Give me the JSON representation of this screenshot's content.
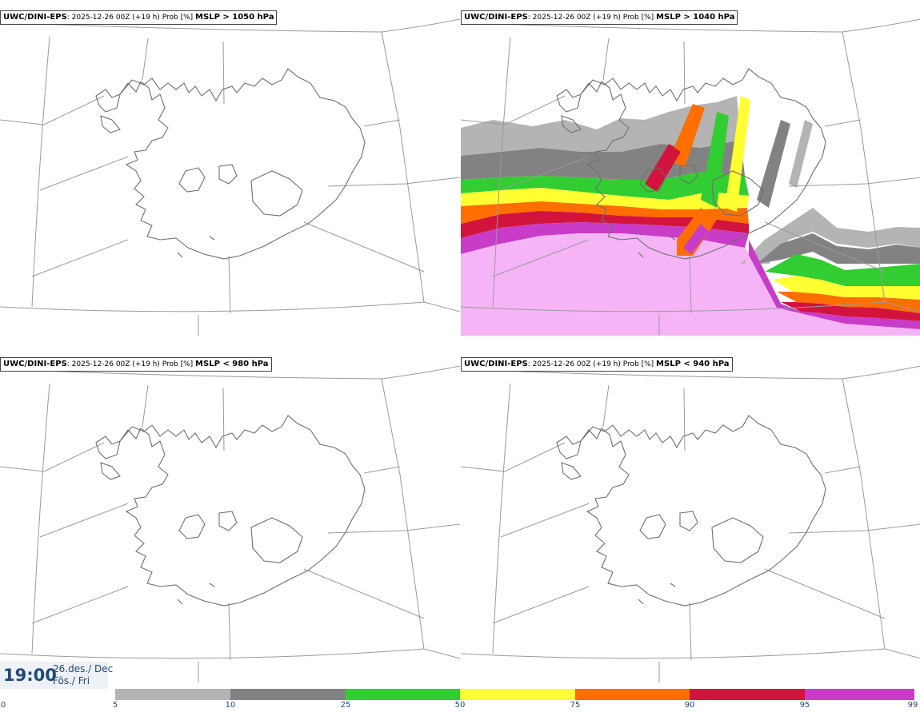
{
  "panels": [
    {
      "model": "UWC/DINI-EPS",
      "run": ": 2025-12-26 00Z (+19 h) Prob [%]",
      "field": "MSLP > 1050 hPa"
    },
    {
      "model": "UWC/DINI-EPS",
      "run": ": 2025-12-26 00Z (+19 h) Prob [%]",
      "field": "MSLP > 1040 hPa"
    },
    {
      "model": "UWC/DINI-EPS",
      "run": ": 2025-12-26 00Z (+19 h) Prob [%]",
      "field": "MSLP < 980 hPa"
    },
    {
      "model": "UWC/DINI-EPS",
      "run": ": 2025-12-26 00Z (+19 h) Prob [%]",
      "field": "MSLP < 940 hPa"
    }
  ],
  "valid": {
    "time": "19:00",
    "date_line1": "26.des./ Dec",
    "date_line2": "Fös./ Fri"
  },
  "colorbar": {
    "ticks": [
      "0",
      "5",
      "10",
      "25",
      "50",
      "75",
      "90",
      "95",
      "99"
    ],
    "colors": [
      "#ffffff",
      "#b4b4b4",
      "#828282",
      "#32cd32",
      "#ffff32",
      "#ff6e00",
      "#d2143c",
      "#c83cc8",
      "#f5b4f5"
    ]
  }
}
